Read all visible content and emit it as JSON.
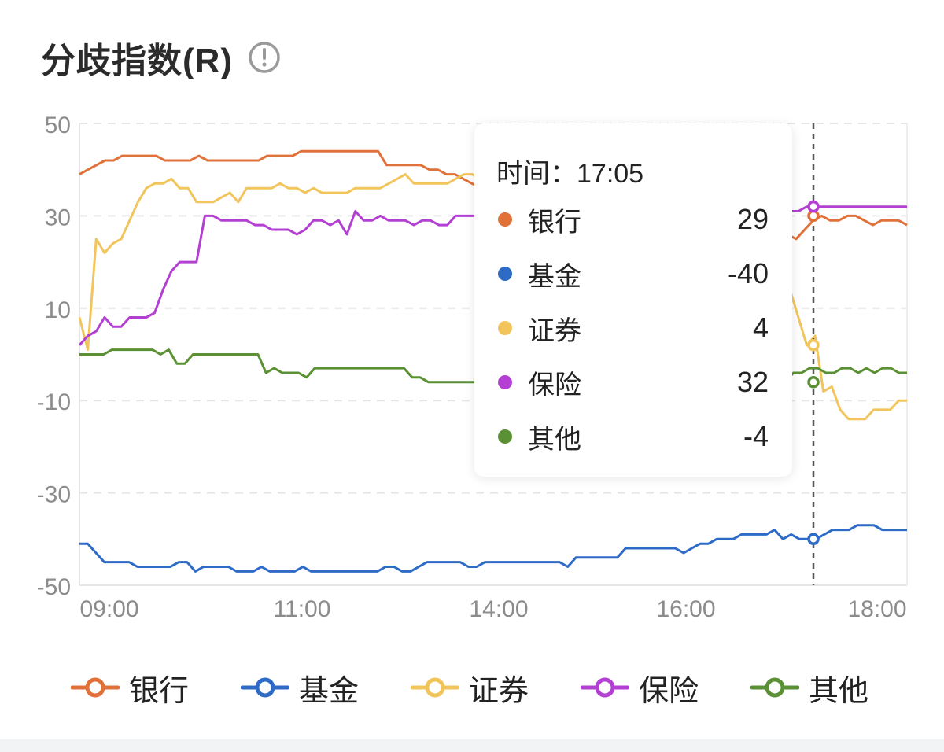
{
  "header": {
    "title": "分歧指数(R)",
    "info_icon": "info-icon"
  },
  "tooltip": {
    "time_text": "时间：17:05",
    "rows": [
      {
        "name": "银行",
        "value": "29",
        "color": "#E07138"
      },
      {
        "name": "基金",
        "value": "-40",
        "color": "#2E6BC6"
      },
      {
        "name": "证券",
        "value": "4",
        "color": "#F2C55C"
      },
      {
        "name": "保险",
        "value": "32",
        "color": "#B43FD3"
      },
      {
        "name": "其他",
        "value": "-4",
        "color": "#5B9135"
      }
    ]
  },
  "chart_data": {
    "type": "line",
    "title": "分歧指数(R)",
    "xlabel": "",
    "ylabel": "",
    "x_ticks": [
      "09:00",
      "11:00",
      "14:00",
      "16:00",
      "18:00"
    ],
    "y_ticks": [
      50,
      30,
      10,
      -10,
      -30,
      -50
    ],
    "ylim": [
      -50,
      50
    ],
    "grid": true,
    "legend_position": "bottom",
    "crosshair_time": "17:05",
    "series": [
      {
        "name": "银行",
        "color": "#E07138",
        "values": [
          39,
          40,
          41,
          42,
          42,
          43,
          43,
          43,
          43,
          43,
          42,
          42,
          42,
          42,
          43,
          42,
          42,
          42,
          42,
          42,
          42,
          42,
          43,
          43,
          43,
          43,
          44,
          44,
          44,
          44,
          44,
          44,
          44,
          44,
          44,
          44,
          41,
          41,
          41,
          41,
          41,
          40,
          40,
          39,
          39,
          38,
          37,
          36,
          35,
          34,
          33,
          32,
          31,
          30,
          30,
          31,
          31,
          31,
          30,
          30,
          30,
          31,
          31,
          31,
          31,
          30,
          30,
          30,
          31,
          31,
          31,
          30,
          30,
          30,
          30,
          30,
          29,
          29,
          29,
          29,
          29,
          29,
          27,
          26,
          25,
          27,
          29,
          30,
          29,
          29,
          30,
          30,
          29,
          28,
          29,
          29,
          29,
          28
        ]
      },
      {
        "name": "基金",
        "color": "#2E6BC6",
        "values": [
          -41,
          -41,
          -43,
          -45,
          -45,
          -45,
          -45,
          -46,
          -46,
          -46,
          -46,
          -46,
          -45,
          -45,
          -47,
          -46,
          -46,
          -46,
          -46,
          -47,
          -47,
          -47,
          -46,
          -47,
          -47,
          -47,
          -47,
          -46,
          -47,
          -47,
          -47,
          -47,
          -47,
          -47,
          -47,
          -47,
          -47,
          -46,
          -46,
          -47,
          -47,
          -46,
          -45,
          -45,
          -45,
          -45,
          -45,
          -46,
          -46,
          -45,
          -45,
          -45,
          -45,
          -45,
          -45,
          -45,
          -45,
          -45,
          -45,
          -46,
          -44,
          -44,
          -44,
          -44,
          -44,
          -44,
          -42,
          -42,
          -42,
          -42,
          -42,
          -42,
          -42,
          -43,
          -42,
          -41,
          -41,
          -40,
          -40,
          -40,
          -39,
          -39,
          -39,
          -39,
          -38,
          -40,
          -39,
          -40,
          -40,
          -40,
          -39,
          -38,
          -38,
          -38,
          -37,
          -37,
          -37,
          -38,
          -38,
          -38,
          -38
        ]
      },
      {
        "name": "证券",
        "color": "#F2C55C",
        "values": [
          8,
          1,
          25,
          22,
          24,
          25,
          29,
          33,
          36,
          37,
          37,
          38,
          36,
          36,
          33,
          33,
          33,
          34,
          35,
          33,
          36,
          36,
          36,
          36,
          37,
          36,
          36,
          35,
          36,
          35,
          35,
          35,
          35,
          36,
          36,
          36,
          36,
          37,
          38,
          39,
          37,
          37,
          37,
          37,
          37,
          38,
          39,
          39,
          38,
          38,
          36,
          35,
          34,
          33,
          32,
          31,
          30,
          30,
          29,
          28,
          27,
          26,
          25,
          24,
          23,
          22,
          21,
          20,
          19,
          18,
          17,
          16,
          16,
          16,
          17,
          17,
          17,
          17,
          17,
          16,
          16,
          16,
          16,
          15,
          14,
          14,
          8,
          2,
          4,
          -8,
          -7,
          -12,
          -14,
          -14,
          -14,
          -12,
          -12,
          -12,
          -10,
          -10
        ]
      },
      {
        "name": "保险",
        "color": "#B43FD3",
        "values": [
          2,
          4,
          5,
          8,
          6,
          6,
          8,
          8,
          8,
          9,
          14,
          18,
          20,
          20,
          20,
          30,
          30,
          29,
          29,
          29,
          29,
          28,
          28,
          27,
          27,
          27,
          26,
          27,
          29,
          29,
          28,
          29,
          26,
          31,
          29,
          29,
          30,
          29,
          29,
          29,
          28,
          29,
          29,
          28,
          28,
          30,
          30,
          30,
          30,
          30,
          30,
          30,
          30,
          30,
          31,
          31,
          31,
          31,
          31,
          31,
          31,
          31,
          31,
          31,
          31,
          31,
          31,
          31,
          31,
          31,
          31,
          31,
          31,
          31,
          31,
          31,
          31,
          31,
          31,
          31,
          31,
          31,
          31,
          31,
          31,
          31,
          31,
          32,
          32,
          32,
          32,
          32,
          32,
          32,
          32,
          32,
          32,
          32,
          32,
          32
        ]
      },
      {
        "name": "其他",
        "color": "#5B9135",
        "values": [
          0,
          0,
          0,
          0,
          1,
          1,
          1,
          1,
          1,
          1,
          0,
          1,
          -2,
          -2,
          0,
          0,
          0,
          0,
          0,
          0,
          0,
          0,
          0,
          -4,
          -3,
          -4,
          -4,
          -4,
          -5,
          -3,
          -3,
          -3,
          -3,
          -3,
          -3,
          -3,
          -3,
          -3,
          -3,
          -3,
          -3,
          -5,
          -5,
          -6,
          -6,
          -6,
          -6,
          -6,
          -6,
          -6,
          -6,
          -6,
          -6,
          -6,
          -6,
          -6,
          -6,
          -6,
          -6,
          -6,
          -6,
          -6,
          -6,
          -6,
          -6,
          -6,
          -6,
          -6,
          -6,
          -6,
          -6,
          -6,
          -6,
          -6,
          -6,
          -6,
          -6,
          -6,
          -6,
          -6,
          -6,
          -6,
          -6,
          -6,
          -6,
          -6,
          -6,
          -6,
          -4,
          -4,
          -3,
          -3,
          -4,
          -4,
          -3,
          -3,
          -4,
          -3,
          -4,
          -3,
          -3,
          -4,
          -4
        ]
      }
    ]
  }
}
